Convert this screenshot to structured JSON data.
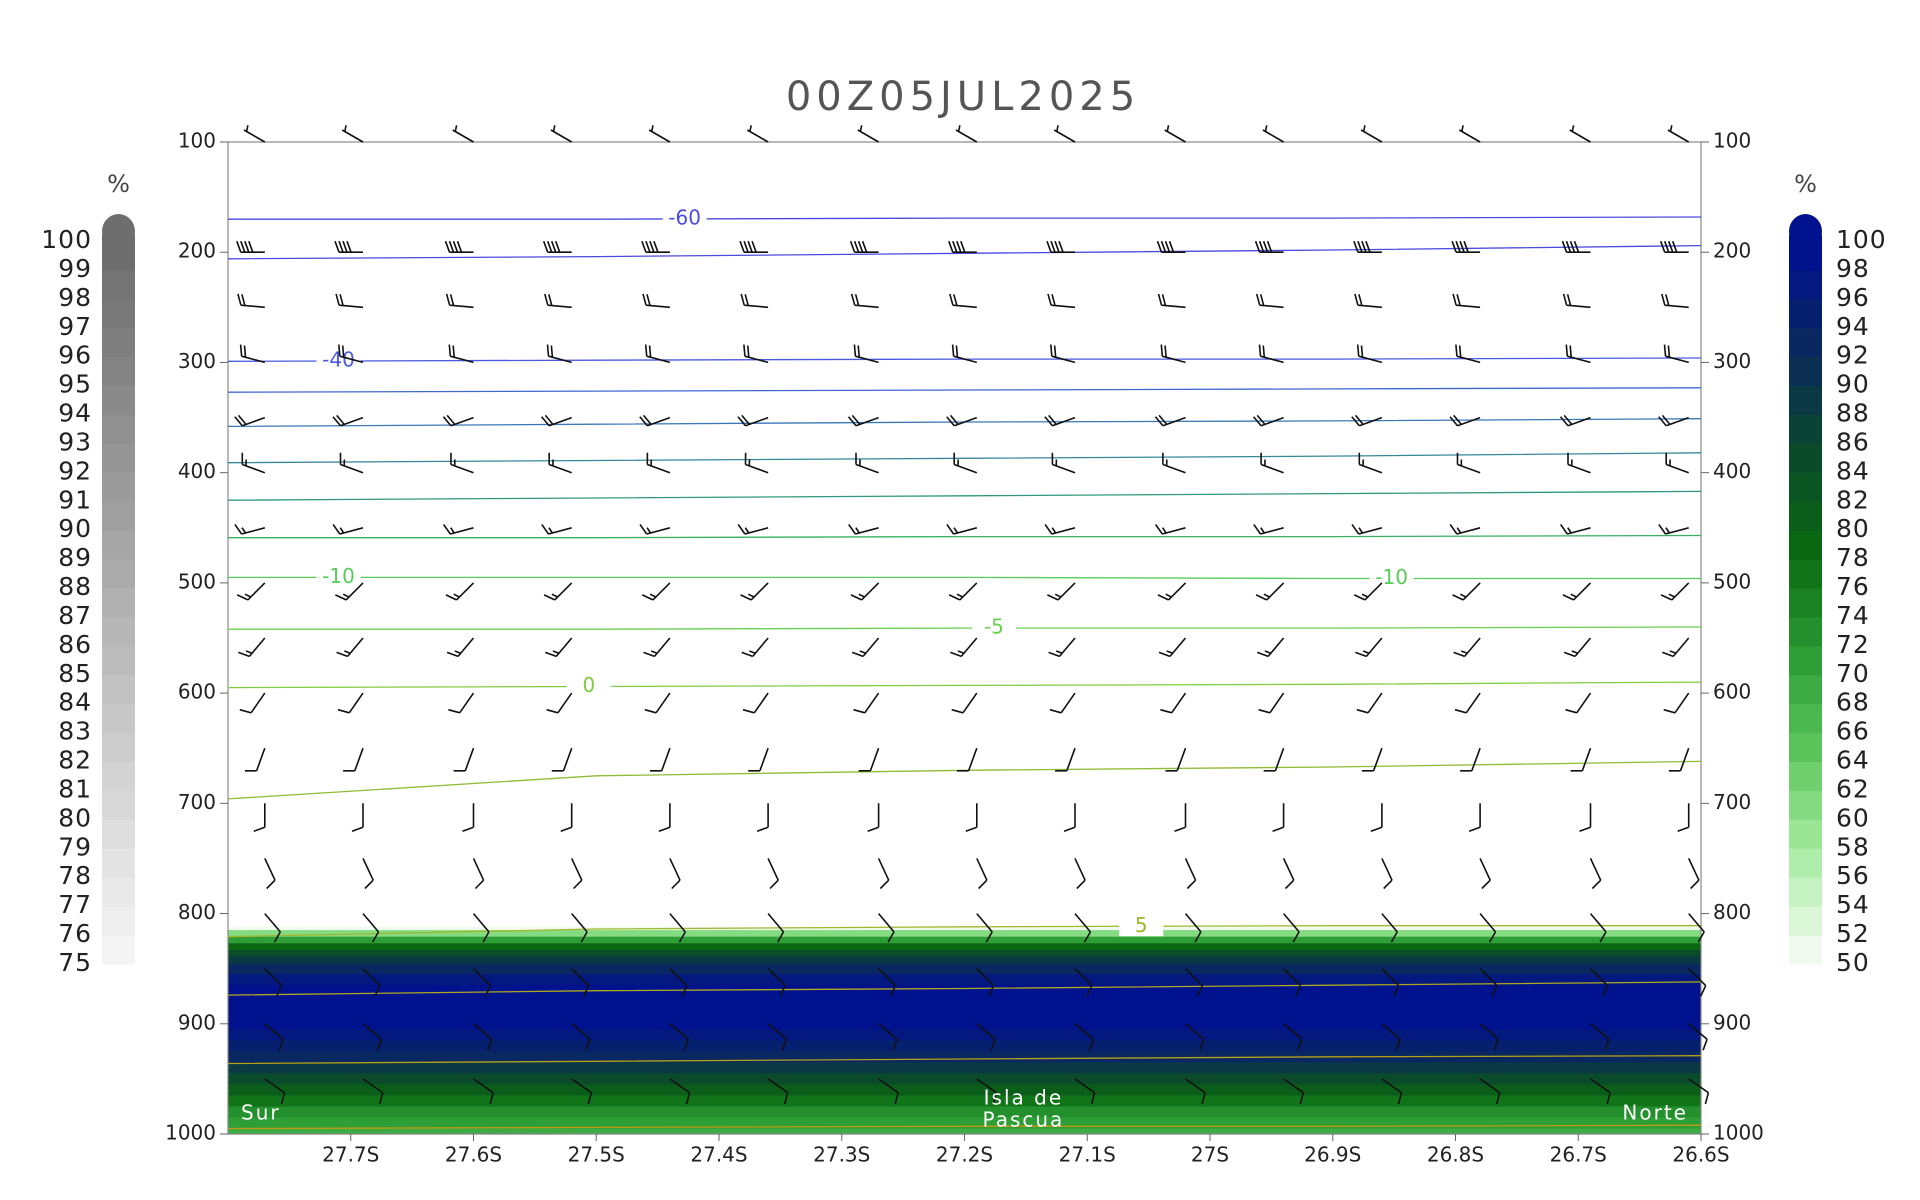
{
  "chart_data": {
    "type": "cross-section",
    "title": "00Z05JUL2025",
    "xlim": [
      -27.8,
      -26.6
    ],
    "xticks": [
      {
        "value": -27.7,
        "label": "27.7S"
      },
      {
        "value": -27.6,
        "label": "27.6S"
      },
      {
        "value": -27.5,
        "label": "27.5S"
      },
      {
        "value": -27.4,
        "label": "27.4S"
      },
      {
        "value": -27.3,
        "label": "27.3S"
      },
      {
        "value": -27.2,
        "label": "27.2S"
      },
      {
        "value": -27.1,
        "label": "27.1S"
      },
      {
        "value": -27.0,
        "label": "27S"
      },
      {
        "value": -26.9,
        "label": "26.9S"
      },
      {
        "value": -26.8,
        "label": "26.8S"
      },
      {
        "value": -26.7,
        "label": "26.7S"
      },
      {
        "value": -26.6,
        "label": "26.6S"
      }
    ],
    "ylim": [
      100,
      1000
    ],
    "y_inverted": true,
    "yticks": [
      100,
      200,
      300,
      400,
      500,
      600,
      700,
      800,
      900,
      1000
    ],
    "colorbars": [
      {
        "side": "left",
        "unit": "%",
        "ticks": [
          75,
          76,
          77,
          78,
          79,
          80,
          81,
          82,
          83,
          84,
          85,
          86,
          87,
          88,
          89,
          90,
          91,
          92,
          93,
          94,
          95,
          96,
          97,
          98,
          99,
          100
        ],
        "colors": [
          "#f4f4f4",
          "#6e6e6e"
        ]
      },
      {
        "side": "right",
        "unit": "%",
        "ticks": [
          50,
          52,
          54,
          56,
          58,
          60,
          62,
          64,
          66,
          68,
          70,
          72,
          74,
          76,
          78,
          80,
          82,
          84,
          86,
          88,
          90,
          92,
          94,
          96,
          98,
          100
        ],
        "colors": [
          "#f0faee",
          "#a6eca0",
          "#5cc65c",
          "#2a9a34",
          "#0a6a10",
          "#0a4a2a",
          "#0a2a5a",
          "#00128e"
        ]
      }
    ],
    "humidity": {
      "p": [
        812,
        818,
        824,
        830,
        836,
        842,
        850,
        860,
        870,
        880,
        890,
        900,
        910,
        920,
        930,
        940,
        950,
        960,
        970,
        980,
        990,
        1000
      ],
      "values": [
        50,
        60,
        70,
        78,
        84,
        88,
        92,
        96,
        99,
        100,
        99,
        98,
        96,
        94,
        92,
        88,
        84,
        80,
        76,
        72,
        70,
        68
      ]
    },
    "contour_x": [
      -27.8,
      -27.5,
      -27.2,
      -26.9,
      -26.6
    ],
    "contours": [
      {
        "color": "#4a4ae0",
        "p": [
          170,
          170,
          169,
          169,
          168
        ],
        "label": -60
      },
      {
        "color": "#4a4ae0",
        "p": [
          206,
          204,
          201,
          198,
          194
        ]
      },
      {
        "color": "#4a5ae0",
        "p": [
          299,
          298,
          297,
          297,
          296
        ],
        "label": -40
      },
      {
        "color": "#4068d0",
        "p": [
          327,
          326,
          325,
          324,
          323
        ]
      },
      {
        "color": "#3a78b8",
        "p": [
          358,
          356,
          354,
          353,
          351
        ]
      },
      {
        "color": "#348898",
        "p": [
          391,
          389,
          387,
          385,
          382
        ]
      },
      {
        "color": "#30987c",
        "p": [
          425,
          423,
          421,
          419,
          417
        ]
      },
      {
        "color": "#38b060",
        "p": [
          459,
          459,
          458,
          458,
          457
        ]
      },
      {
        "color": "#58cc58",
        "p": [
          495,
          495,
          495,
          496,
          496
        ],
        "label": -10
      },
      {
        "color": "#68d050",
        "p": [
          542,
          542,
          541,
          541,
          540
        ],
        "label": -5
      },
      {
        "color": "#80cc40",
        "p": [
          595,
          594,
          593,
          592,
          590
        ],
        "label": 0
      },
      {
        "color": "#90bc34",
        "p": [
          696,
          675,
          670,
          667,
          662
        ]
      },
      {
        "color": "#a0b82c",
        "p": [
          821,
          814,
          812,
          811,
          811
        ],
        "label": 5
      },
      {
        "color": "#b0a820",
        "p": [
          874,
          870,
          868,
          865,
          862
        ]
      },
      {
        "color": "#b8a014",
        "p": [
          936,
          934,
          932,
          930,
          929
        ]
      },
      {
        "color": "#c09a10",
        "p": [
          995,
          994,
          993,
          993,
          992
        ]
      }
    ],
    "winds": {
      "x": [
        -27.77,
        -27.69,
        -27.6,
        -27.52,
        -27.44,
        -27.36,
        -27.27,
        -27.19,
        -27.11,
        -27.02,
        -26.94,
        -26.86,
        -26.78,
        -26.69,
        -26.61
      ],
      "p": [
        100,
        200,
        250,
        300,
        350,
        400,
        450,
        500,
        550,
        600,
        650,
        700,
        750,
        800,
        850,
        900,
        950
      ],
      "dir": [
        300,
        270,
        275,
        285,
        250,
        290,
        255,
        225,
        220,
        215,
        200,
        180,
        155,
        140,
        135,
        130,
        125
      ],
      "speed": [
        5,
        40,
        20,
        20,
        20,
        15,
        15,
        15,
        15,
        10,
        10,
        10,
        10,
        10,
        10,
        10,
        10
      ]
    },
    "annotations": {
      "left": "Sur",
      "center": [
        "Isla de",
        "Pascua"
      ],
      "right": "Norte"
    }
  }
}
